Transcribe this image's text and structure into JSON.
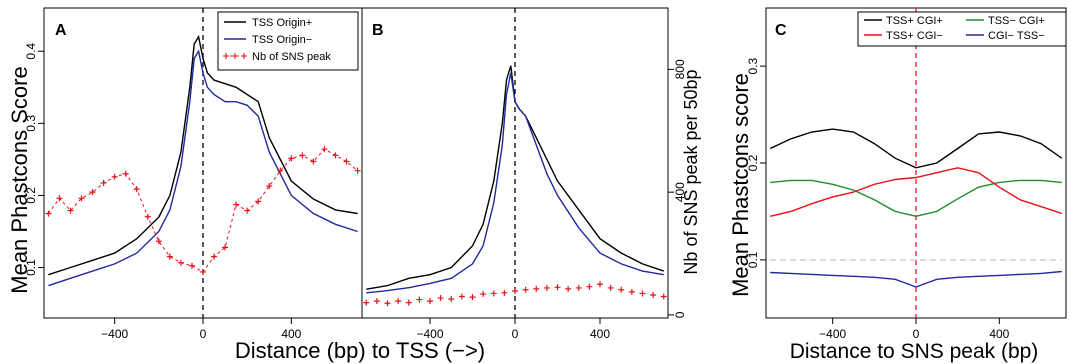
{
  "figure": {
    "shared_xlabel_ab": "Distance (bp) to TSS (−>)",
    "ylabel_left": "Mean Phastcons Score",
    "ylabel_right_b": "Nb of SNS peak per 50bp",
    "ylabel_c": "Mean Phastcons score",
    "xlabel_c": "Distance to SNS peak (bp)"
  },
  "colors": {
    "black": "#000000",
    "blue": "#1f2a9c",
    "red": "#e8121b",
    "green": "#1f8c2e",
    "gray_dashed": "#c8c8c8",
    "vline_ab": "#000000",
    "vline_c": "#e8121b"
  },
  "chart_data": [
    {
      "panel": "A",
      "type": "line",
      "title": "A",
      "xlim": [
        -720,
        720
      ],
      "ylim": [
        0.03,
        0.46
      ],
      "y2lim": [
        -10,
        1000
      ],
      "x_ticks": [
        -400,
        0,
        400
      ],
      "y_ticks": [
        0.1,
        0.2,
        0.3,
        0.4
      ],
      "y2_ticks": [
        0,
        400,
        800
      ],
      "legend": [
        "TSS Origin+",
        "TSS Origin−",
        "Nb of SNS peak"
      ],
      "series": [
        {
          "name": "TSS Origin+",
          "color": "#000000",
          "x": [
            -700,
            -600,
            -500,
            -400,
            -300,
            -200,
            -150,
            -100,
            -60,
            -40,
            -20,
            0,
            20,
            50,
            100,
            150,
            200,
            250,
            300,
            400,
            500,
            600,
            700
          ],
          "y": [
            0.09,
            0.1,
            0.11,
            0.12,
            0.14,
            0.17,
            0.2,
            0.26,
            0.35,
            0.41,
            0.42,
            0.39,
            0.37,
            0.36,
            0.355,
            0.35,
            0.34,
            0.33,
            0.28,
            0.22,
            0.195,
            0.18,
            0.175
          ]
        },
        {
          "name": "TSS Origin−",
          "color": "#1f2a9c",
          "x": [
            -700,
            -600,
            -500,
            -400,
            -300,
            -200,
            -150,
            -100,
            -60,
            -40,
            -20,
            0,
            20,
            50,
            100,
            150,
            200,
            250,
            300,
            400,
            500,
            600,
            700
          ],
          "y": [
            0.075,
            0.085,
            0.095,
            0.105,
            0.12,
            0.15,
            0.18,
            0.24,
            0.33,
            0.39,
            0.4,
            0.37,
            0.35,
            0.34,
            0.33,
            0.33,
            0.325,
            0.31,
            0.26,
            0.2,
            0.175,
            0.16,
            0.15
          ]
        },
        {
          "name": "Nb of SNS peak",
          "color": "#e8121b",
          "axis": "right",
          "x": [
            -700,
            -650,
            -600,
            -550,
            -500,
            -450,
            -400,
            -350,
            -300,
            -250,
            -200,
            -150,
            -100,
            -50,
            0,
            50,
            100,
            150,
            200,
            250,
            300,
            350,
            400,
            450,
            500,
            550,
            600,
            650,
            700
          ],
          "y": [
            330,
            380,
            340,
            380,
            400,
            430,
            450,
            460,
            410,
            320,
            240,
            190,
            170,
            160,
            140,
            190,
            220,
            360,
            340,
            370,
            420,
            470,
            510,
            520,
            500,
            540,
            520,
            500,
            470
          ]
        }
      ]
    },
    {
      "panel": "B",
      "type": "line",
      "title": "B",
      "xlim": [
        -720,
        720
      ],
      "ylim": [
        0.03,
        0.46
      ],
      "y2lim": [
        -10,
        1000
      ],
      "x_ticks": [
        -400,
        0,
        400
      ],
      "y2_ticks": [
        0,
        400,
        800
      ],
      "series": [
        {
          "name": "",
          "color": "#000000",
          "x": [
            -700,
            -600,
            -500,
            -400,
            -300,
            -200,
            -150,
            -100,
            -60,
            -40,
            -20,
            0,
            20,
            50,
            100,
            150,
            200,
            300,
            400,
            500,
            600,
            700
          ],
          "y": [
            0.07,
            0.075,
            0.085,
            0.09,
            0.1,
            0.13,
            0.16,
            0.22,
            0.3,
            0.36,
            0.38,
            0.33,
            0.32,
            0.31,
            0.28,
            0.25,
            0.22,
            0.18,
            0.14,
            0.12,
            0.105,
            0.095
          ]
        },
        {
          "name": "",
          "color": "#1f2a9c",
          "x": [
            -700,
            -600,
            -500,
            -400,
            -300,
            -200,
            -150,
            -100,
            -60,
            -40,
            -20,
            0,
            20,
            50,
            100,
            150,
            200,
            300,
            400,
            500,
            600,
            700
          ],
          "y": [
            0.065,
            0.068,
            0.072,
            0.078,
            0.085,
            0.105,
            0.13,
            0.19,
            0.27,
            0.34,
            0.37,
            0.33,
            0.32,
            0.31,
            0.27,
            0.23,
            0.2,
            0.155,
            0.12,
            0.105,
            0.095,
            0.09
          ]
        },
        {
          "name": "",
          "color": "#e8121b",
          "axis": "right",
          "x": [
            -700,
            -650,
            -600,
            -550,
            -500,
            -450,
            -400,
            -350,
            -300,
            -250,
            -200,
            -150,
            -100,
            -50,
            0,
            50,
            100,
            150,
            200,
            250,
            300,
            350,
            400,
            450,
            500,
            550,
            600,
            650,
            700
          ],
          "y": [
            40,
            45,
            38,
            45,
            40,
            50,
            45,
            55,
            52,
            60,
            58,
            68,
            70,
            72,
            78,
            82,
            85,
            88,
            90,
            85,
            88,
            92,
            100,
            88,
            82,
            75,
            70,
            65,
            60
          ]
        }
      ]
    },
    {
      "panel": "C",
      "type": "line",
      "title": "C",
      "xlim": [
        -720,
        720
      ],
      "ylim": [
        0.04,
        0.36
      ],
      "x_ticks": [
        -400,
        0,
        400
      ],
      "y_ticks": [
        0.1,
        0.2,
        0.3
      ],
      "legend": [
        "TSS+ CGI+",
        "TSS− CGI+",
        "TSS+ CGI−",
        "CGI− TSS−"
      ],
      "series": [
        {
          "name": "TSS+ CGI+",
          "color": "#000000",
          "x": [
            -700,
            -600,
            -500,
            -400,
            -300,
            -200,
            -100,
            0,
            100,
            200,
            300,
            400,
            500,
            600,
            700
          ],
          "y": [
            0.215,
            0.225,
            0.232,
            0.235,
            0.232,
            0.22,
            0.205,
            0.195,
            0.2,
            0.215,
            0.23,
            0.232,
            0.228,
            0.22,
            0.205
          ]
        },
        {
          "name": "TSS− CGI+",
          "color": "#1f8c2e",
          "x": [
            -700,
            -600,
            -500,
            -400,
            -300,
            -200,
            -100,
            0,
            100,
            200,
            300,
            400,
            500,
            600,
            700
          ],
          "y": [
            0.18,
            0.182,
            0.182,
            0.178,
            0.172,
            0.162,
            0.15,
            0.145,
            0.15,
            0.163,
            0.175,
            0.18,
            0.182,
            0.182,
            0.18
          ]
        },
        {
          "name": "TSS+ CGI−",
          "color": "#e8121b",
          "x": [
            -700,
            -600,
            -500,
            -400,
            -300,
            -200,
            -100,
            0,
            100,
            200,
            300,
            400,
            500,
            600,
            700
          ],
          "y": [
            0.145,
            0.15,
            0.158,
            0.165,
            0.17,
            0.178,
            0.183,
            0.185,
            0.19,
            0.195,
            0.19,
            0.175,
            0.162,
            0.155,
            0.148
          ]
        },
        {
          "name": "CGI− TSS−",
          "color": "#1f2a9c",
          "x": [
            -700,
            -600,
            -500,
            -400,
            -300,
            -200,
            -100,
            -50,
            0,
            50,
            100,
            200,
            300,
            400,
            500,
            600,
            700
          ],
          "y": [
            0.087,
            0.086,
            0.085,
            0.084,
            0.083,
            0.082,
            0.08,
            0.076,
            0.072,
            0.076,
            0.08,
            0.082,
            0.083,
            0.084,
            0.085,
            0.086,
            0.088
          ]
        },
        {
          "name": "",
          "color": "#c8c8c8",
          "dashed": true,
          "x": [
            -700,
            700
          ],
          "y": [
            0.1,
            0.1
          ]
        }
      ]
    }
  ]
}
